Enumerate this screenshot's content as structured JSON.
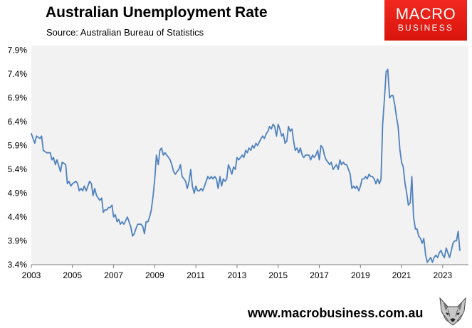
{
  "header": {
    "title": "Australian Unemployment Rate",
    "subtitle": "Source: Australian Bureau of Statistics"
  },
  "brand": {
    "line1": "MACRO",
    "line2": "BUSINESS",
    "color": "#e41e16"
  },
  "footer": {
    "url": "www.macrobusiness.com.au"
  },
  "icons": {
    "fox": "fox-head-icon"
  },
  "chart_data": {
    "type": "line",
    "title": "Australian Unemployment Rate",
    "subtitle": "Source: Australian Bureau of Statistics",
    "xlim": [
      2003.0,
      2024.25
    ],
    "ylim": [
      3.4,
      8.0
    ],
    "x_ticks": [
      2003,
      2005,
      2007,
      2009,
      2011,
      2013,
      2015,
      2017,
      2019,
      2021,
      2023
    ],
    "x_tick_labels": [
      "2003",
      "2005",
      "2007",
      "2009",
      "2011",
      "2013",
      "2015",
      "2017",
      "2019",
      "2021",
      "2023"
    ],
    "y_ticks": [
      3.4,
      3.9,
      4.4,
      4.9,
      5.4,
      5.9,
      6.4,
      6.9,
      7.4,
      7.9
    ],
    "y_tick_labels": [
      "3.4%",
      "3.9%",
      "4.4%",
      "4.9%",
      "5.4%",
      "5.9%",
      "6.4%",
      "6.9%",
      "7.4%",
      "7.9%"
    ],
    "grid": false,
    "plot_background": "#f2f2f2",
    "line_color": "#4f81bd",
    "series": [
      {
        "points": [
          [
            2003.0,
            6.15
          ],
          [
            2003.17,
            5.95
          ],
          [
            2003.25,
            6.1
          ],
          [
            2003.42,
            6.05
          ],
          [
            2003.5,
            6.1
          ],
          [
            2003.58,
            5.8
          ],
          [
            2003.75,
            5.75
          ],
          [
            2003.92,
            5.75
          ],
          [
            2004.0,
            5.6
          ],
          [
            2004.08,
            5.65
          ],
          [
            2004.17,
            5.5
          ],
          [
            2004.25,
            5.6
          ],
          [
            2004.42,
            5.35
          ],
          [
            2004.5,
            5.55
          ],
          [
            2004.67,
            5.5
          ],
          [
            2004.75,
            5.1
          ],
          [
            2004.83,
            5.15
          ],
          [
            2004.92,
            5.05
          ],
          [
            2005.0,
            5.1
          ],
          [
            2005.17,
            5.15
          ],
          [
            2005.25,
            5.1
          ],
          [
            2005.33,
            4.95
          ],
          [
            2005.42,
            5.0
          ],
          [
            2005.5,
            4.95
          ],
          [
            2005.58,
            5.05
          ],
          [
            2005.67,
            4.95
          ],
          [
            2005.75,
            5.05
          ],
          [
            2005.83,
            5.15
          ],
          [
            2005.92,
            5.1
          ],
          [
            2006.0,
            4.85
          ],
          [
            2006.08,
            5.0
          ],
          [
            2006.17,
            4.85
          ],
          [
            2006.25,
            4.8
          ],
          [
            2006.33,
            4.75
          ],
          [
            2006.42,
            4.8
          ],
          [
            2006.5,
            4.5
          ],
          [
            2006.58,
            4.55
          ],
          [
            2006.67,
            4.55
          ],
          [
            2006.75,
            4.6
          ],
          [
            2006.83,
            4.6
          ],
          [
            2006.92,
            4.65
          ],
          [
            2007.0,
            4.4
          ],
          [
            2007.08,
            4.45
          ],
          [
            2007.17,
            4.3
          ],
          [
            2007.25,
            4.35
          ],
          [
            2007.33,
            4.25
          ],
          [
            2007.42,
            4.3
          ],
          [
            2007.5,
            4.25
          ],
          [
            2007.67,
            4.4
          ],
          [
            2007.83,
            4.2
          ],
          [
            2007.92,
            4.0
          ],
          [
            2008.0,
            4.05
          ],
          [
            2008.08,
            4.15
          ],
          [
            2008.17,
            4.25
          ],
          [
            2008.33,
            4.25
          ],
          [
            2008.42,
            4.2
          ],
          [
            2008.5,
            4.05
          ],
          [
            2008.58,
            4.3
          ],
          [
            2008.67,
            4.3
          ],
          [
            2008.75,
            4.4
          ],
          [
            2008.83,
            4.55
          ],
          [
            2008.92,
            4.85
          ],
          [
            2009.0,
            5.2
          ],
          [
            2009.08,
            5.7
          ],
          [
            2009.17,
            5.5
          ],
          [
            2009.25,
            5.8
          ],
          [
            2009.33,
            5.85
          ],
          [
            2009.42,
            5.7
          ],
          [
            2009.5,
            5.75
          ],
          [
            2009.58,
            5.7
          ],
          [
            2009.67,
            5.65
          ],
          [
            2009.75,
            5.6
          ],
          [
            2009.83,
            5.5
          ],
          [
            2009.92,
            5.35
          ],
          [
            2010.0,
            5.3
          ],
          [
            2010.08,
            5.35
          ],
          [
            2010.17,
            5.4
          ],
          [
            2010.25,
            5.5
          ],
          [
            2010.33,
            5.25
          ],
          [
            2010.42,
            5.2
          ],
          [
            2010.5,
            5.15
          ],
          [
            2010.58,
            5.0
          ],
          [
            2010.67,
            5.15
          ],
          [
            2010.75,
            5.4
          ],
          [
            2010.83,
            5.05
          ],
          [
            2010.92,
            4.9
          ],
          [
            2011.0,
            5.05
          ],
          [
            2011.08,
            4.95
          ],
          [
            2011.17,
            4.95
          ],
          [
            2011.25,
            5.0
          ],
          [
            2011.33,
            4.95
          ],
          [
            2011.42,
            5.05
          ],
          [
            2011.5,
            5.15
          ],
          [
            2011.58,
            5.25
          ],
          [
            2011.67,
            5.2
          ],
          [
            2011.75,
            5.25
          ],
          [
            2011.83,
            5.2
          ],
          [
            2011.92,
            5.25
          ],
          [
            2012.0,
            5.2
          ],
          [
            2012.08,
            5.0
          ],
          [
            2012.17,
            5.25
          ],
          [
            2012.25,
            5.05
          ],
          [
            2012.33,
            5.2
          ],
          [
            2012.42,
            5.15
          ],
          [
            2012.5,
            5.2
          ],
          [
            2012.58,
            5.5
          ],
          [
            2012.67,
            5.4
          ],
          [
            2012.75,
            5.3
          ],
          [
            2012.83,
            5.45
          ],
          [
            2012.92,
            5.4
          ],
          [
            2013.0,
            5.65
          ],
          [
            2013.08,
            5.6
          ],
          [
            2013.17,
            5.65
          ],
          [
            2013.25,
            5.7
          ],
          [
            2013.33,
            5.65
          ],
          [
            2013.42,
            5.8
          ],
          [
            2013.5,
            5.75
          ],
          [
            2013.58,
            5.85
          ],
          [
            2013.67,
            5.8
          ],
          [
            2013.75,
            5.9
          ],
          [
            2013.83,
            5.85
          ],
          [
            2013.92,
            5.95
          ],
          [
            2014.0,
            5.9
          ],
          [
            2014.17,
            6.05
          ],
          [
            2014.25,
            6.1
          ],
          [
            2014.33,
            6.05
          ],
          [
            2014.42,
            6.15
          ],
          [
            2014.5,
            6.2
          ],
          [
            2014.58,
            6.3
          ],
          [
            2014.67,
            6.25
          ],
          [
            2014.75,
            6.35
          ],
          [
            2014.83,
            6.3
          ],
          [
            2014.92,
            6.1
          ],
          [
            2015.0,
            6.35
          ],
          [
            2015.08,
            6.25
          ],
          [
            2015.17,
            6.1
          ],
          [
            2015.25,
            6.15
          ],
          [
            2015.33,
            5.95
          ],
          [
            2015.42,
            6.0
          ],
          [
            2015.5,
            6.3
          ],
          [
            2015.58,
            6.2
          ],
          [
            2015.67,
            6.25
          ],
          [
            2015.75,
            6.0
          ],
          [
            2015.83,
            5.8
          ],
          [
            2015.92,
            5.85
          ],
          [
            2016.0,
            5.75
          ],
          [
            2016.08,
            5.85
          ],
          [
            2016.17,
            5.7
          ],
          [
            2016.25,
            5.65
          ],
          [
            2016.33,
            5.7
          ],
          [
            2016.42,
            5.7
          ],
          [
            2016.5,
            5.7
          ],
          [
            2016.58,
            5.6
          ],
          [
            2016.67,
            5.7
          ],
          [
            2016.75,
            5.65
          ],
          [
            2016.83,
            5.7
          ],
          [
            2016.92,
            5.8
          ],
          [
            2017.0,
            5.6
          ],
          [
            2017.08,
            5.9
          ],
          [
            2017.17,
            5.85
          ],
          [
            2017.25,
            5.7
          ],
          [
            2017.33,
            5.6
          ],
          [
            2017.42,
            5.55
          ],
          [
            2017.5,
            5.5
          ],
          [
            2017.58,
            5.55
          ],
          [
            2017.67,
            5.4
          ],
          [
            2017.75,
            5.45
          ],
          [
            2017.83,
            5.5
          ],
          [
            2017.92,
            5.4
          ],
          [
            2018.0,
            5.6
          ],
          [
            2018.08,
            5.5
          ],
          [
            2018.17,
            5.55
          ],
          [
            2018.25,
            5.5
          ],
          [
            2018.33,
            5.5
          ],
          [
            2018.42,
            5.4
          ],
          [
            2018.5,
            5.3
          ],
          [
            2018.58,
            5.0
          ],
          [
            2018.67,
            5.05
          ],
          [
            2018.75,
            5.0
          ],
          [
            2018.83,
            5.05
          ],
          [
            2018.92,
            4.95
          ],
          [
            2019.0,
            5.05
          ],
          [
            2019.08,
            5.2
          ],
          [
            2019.17,
            5.2
          ],
          [
            2019.25,
            5.25
          ],
          [
            2019.33,
            5.2
          ],
          [
            2019.42,
            5.3
          ],
          [
            2019.5,
            5.25
          ],
          [
            2019.58,
            5.25
          ],
          [
            2019.67,
            5.2
          ],
          [
            2019.75,
            5.1
          ],
          [
            2019.83,
            5.2
          ],
          [
            2019.92,
            5.1
          ],
          [
            2020.0,
            5.2
          ],
          [
            2020.08,
            6.35
          ],
          [
            2020.17,
            6.9
          ],
          [
            2020.25,
            7.45
          ],
          [
            2020.33,
            7.5
          ],
          [
            2020.42,
            6.9
          ],
          [
            2020.5,
            6.95
          ],
          [
            2020.58,
            6.95
          ],
          [
            2020.67,
            6.75
          ],
          [
            2020.75,
            6.5
          ],
          [
            2020.83,
            6.3
          ],
          [
            2020.92,
            5.8
          ],
          [
            2021.0,
            5.55
          ],
          [
            2021.08,
            5.45
          ],
          [
            2021.17,
            5.1
          ],
          [
            2021.25,
            4.9
          ],
          [
            2021.33,
            4.65
          ],
          [
            2021.42,
            4.7
          ],
          [
            2021.5,
            5.25
          ],
          [
            2021.58,
            4.4
          ],
          [
            2021.67,
            4.15
          ],
          [
            2021.75,
            4.15
          ],
          [
            2021.83,
            4.0
          ],
          [
            2021.92,
            3.95
          ],
          [
            2022.0,
            3.85
          ],
          [
            2022.08,
            3.95
          ],
          [
            2022.17,
            3.6
          ],
          [
            2022.25,
            3.45
          ],
          [
            2022.33,
            3.5
          ],
          [
            2022.42,
            3.55
          ],
          [
            2022.5,
            3.45
          ],
          [
            2022.58,
            3.55
          ],
          [
            2022.67,
            3.6
          ],
          [
            2022.75,
            3.55
          ],
          [
            2022.83,
            3.65
          ],
          [
            2022.92,
            3.7
          ],
          [
            2023.0,
            3.6
          ],
          [
            2023.08,
            3.55
          ],
          [
            2023.17,
            3.75
          ],
          [
            2023.25,
            3.65
          ],
          [
            2023.33,
            3.55
          ],
          [
            2023.42,
            3.7
          ],
          [
            2023.5,
            3.85
          ],
          [
            2023.58,
            3.9
          ],
          [
            2023.67,
            3.9
          ],
          [
            2023.75,
            4.1
          ],
          [
            2023.83,
            3.7
          ]
        ]
      }
    ]
  }
}
